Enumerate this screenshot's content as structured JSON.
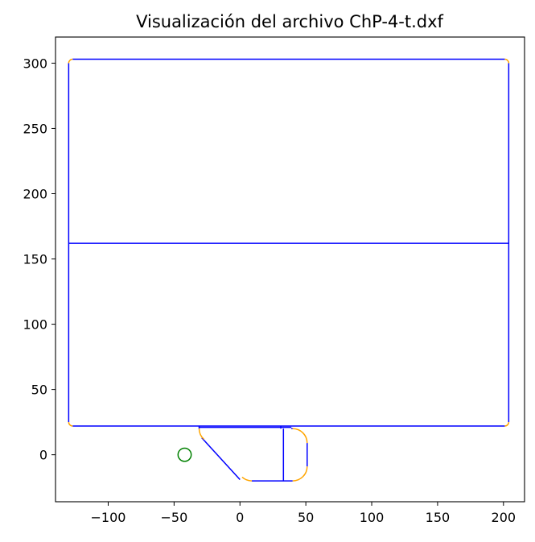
{
  "chart_data": {
    "type": "line",
    "title": "Visualización del archivo ChP-4-t.dxf",
    "xlabel": "",
    "ylabel": "",
    "xlim": [
      -140,
      216
    ],
    "ylim": [
      -36,
      320
    ],
    "grid": false,
    "x_ticks": [
      -100,
      -50,
      0,
      50,
      100,
      150,
      200
    ],
    "y_ticks": [
      0,
      50,
      100,
      150,
      200,
      250,
      300
    ],
    "colors": {
      "lines": "#0000ff",
      "arcs": "#ffa500",
      "circles": "#008000"
    },
    "lines": [
      [
        -130,
        300,
        -130,
        25
      ],
      [
        -127,
        303,
        201,
        303
      ],
      [
        204,
        300,
        204,
        25
      ],
      [
        -127,
        22,
        201,
        22
      ],
      [
        -130,
        162,
        204,
        162
      ],
      [
        -31,
        22,
        -31,
        20
      ],
      [
        -31,
        21,
        31,
        21
      ],
      [
        -29,
        13,
        0,
        -19
      ],
      [
        9,
        -20,
        40,
        -20
      ],
      [
        31,
        22,
        31,
        20
      ],
      [
        31,
        21,
        39,
        21
      ],
      [
        33,
        20,
        33,
        -20
      ],
      [
        39,
        20,
        40,
        20
      ],
      [
        51,
        9,
        51,
        -9
      ]
    ],
    "arcs": [
      {
        "cx": -127,
        "cy": 300,
        "r": 3,
        "start": 90,
        "end": 180
      },
      {
        "cx": 201,
        "cy": 300,
        "r": 3,
        "start": 0,
        "end": 90
      },
      {
        "cx": -127,
        "cy": 25,
        "r": 3,
        "start": 180,
        "end": 270
      },
      {
        "cx": 201,
        "cy": 25,
        "r": 3,
        "start": 270,
        "end": 360
      },
      {
        "cx": -20,
        "cy": 20,
        "r": 11,
        "start": 180,
        "end": 228
      },
      {
        "cx": 9,
        "cy": -9,
        "r": 11,
        "start": 228,
        "end": 270
      },
      {
        "cx": 40,
        "cy": 9,
        "r": 11,
        "start": 0,
        "end": 90
      },
      {
        "cx": 40,
        "cy": -9,
        "r": 11,
        "start": 270,
        "end": 360
      }
    ],
    "circles": [
      {
        "cx": -42,
        "cy": 0,
        "r": 5
      }
    ]
  }
}
